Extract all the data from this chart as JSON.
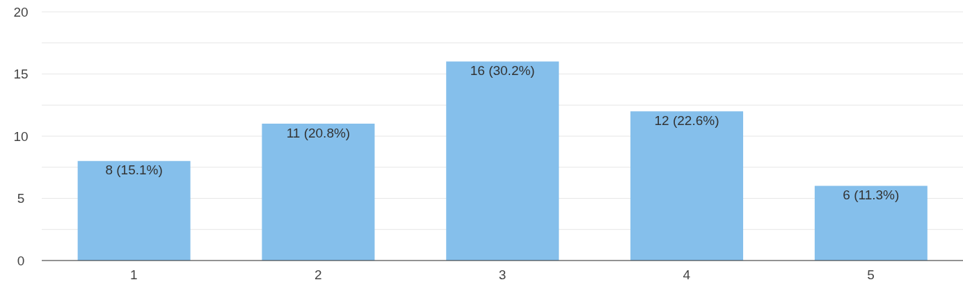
{
  "chart_data": {
    "type": "bar",
    "categories": [
      "1",
      "2",
      "3",
      "4",
      "5"
    ],
    "values": [
      8,
      11,
      16,
      12,
      6
    ],
    "value_labels": [
      "8 (15.1%)",
      "11 (20.8%)",
      "16 (30.2%)",
      "12 (22.6%)",
      "6 (11.3%)"
    ],
    "color": "#85bfeb",
    "ylim": [
      0,
      20
    ],
    "yticks": [
      0,
      {
        "value": 2.5,
        "label": null
      },
      5,
      {
        "value": 7.5,
        "label": null
      },
      10,
      {
        "value": 12.5,
        "label": null
      },
      15,
      {
        "value": 17.5,
        "label": null
      },
      20
    ],
    "grid": "y"
  }
}
